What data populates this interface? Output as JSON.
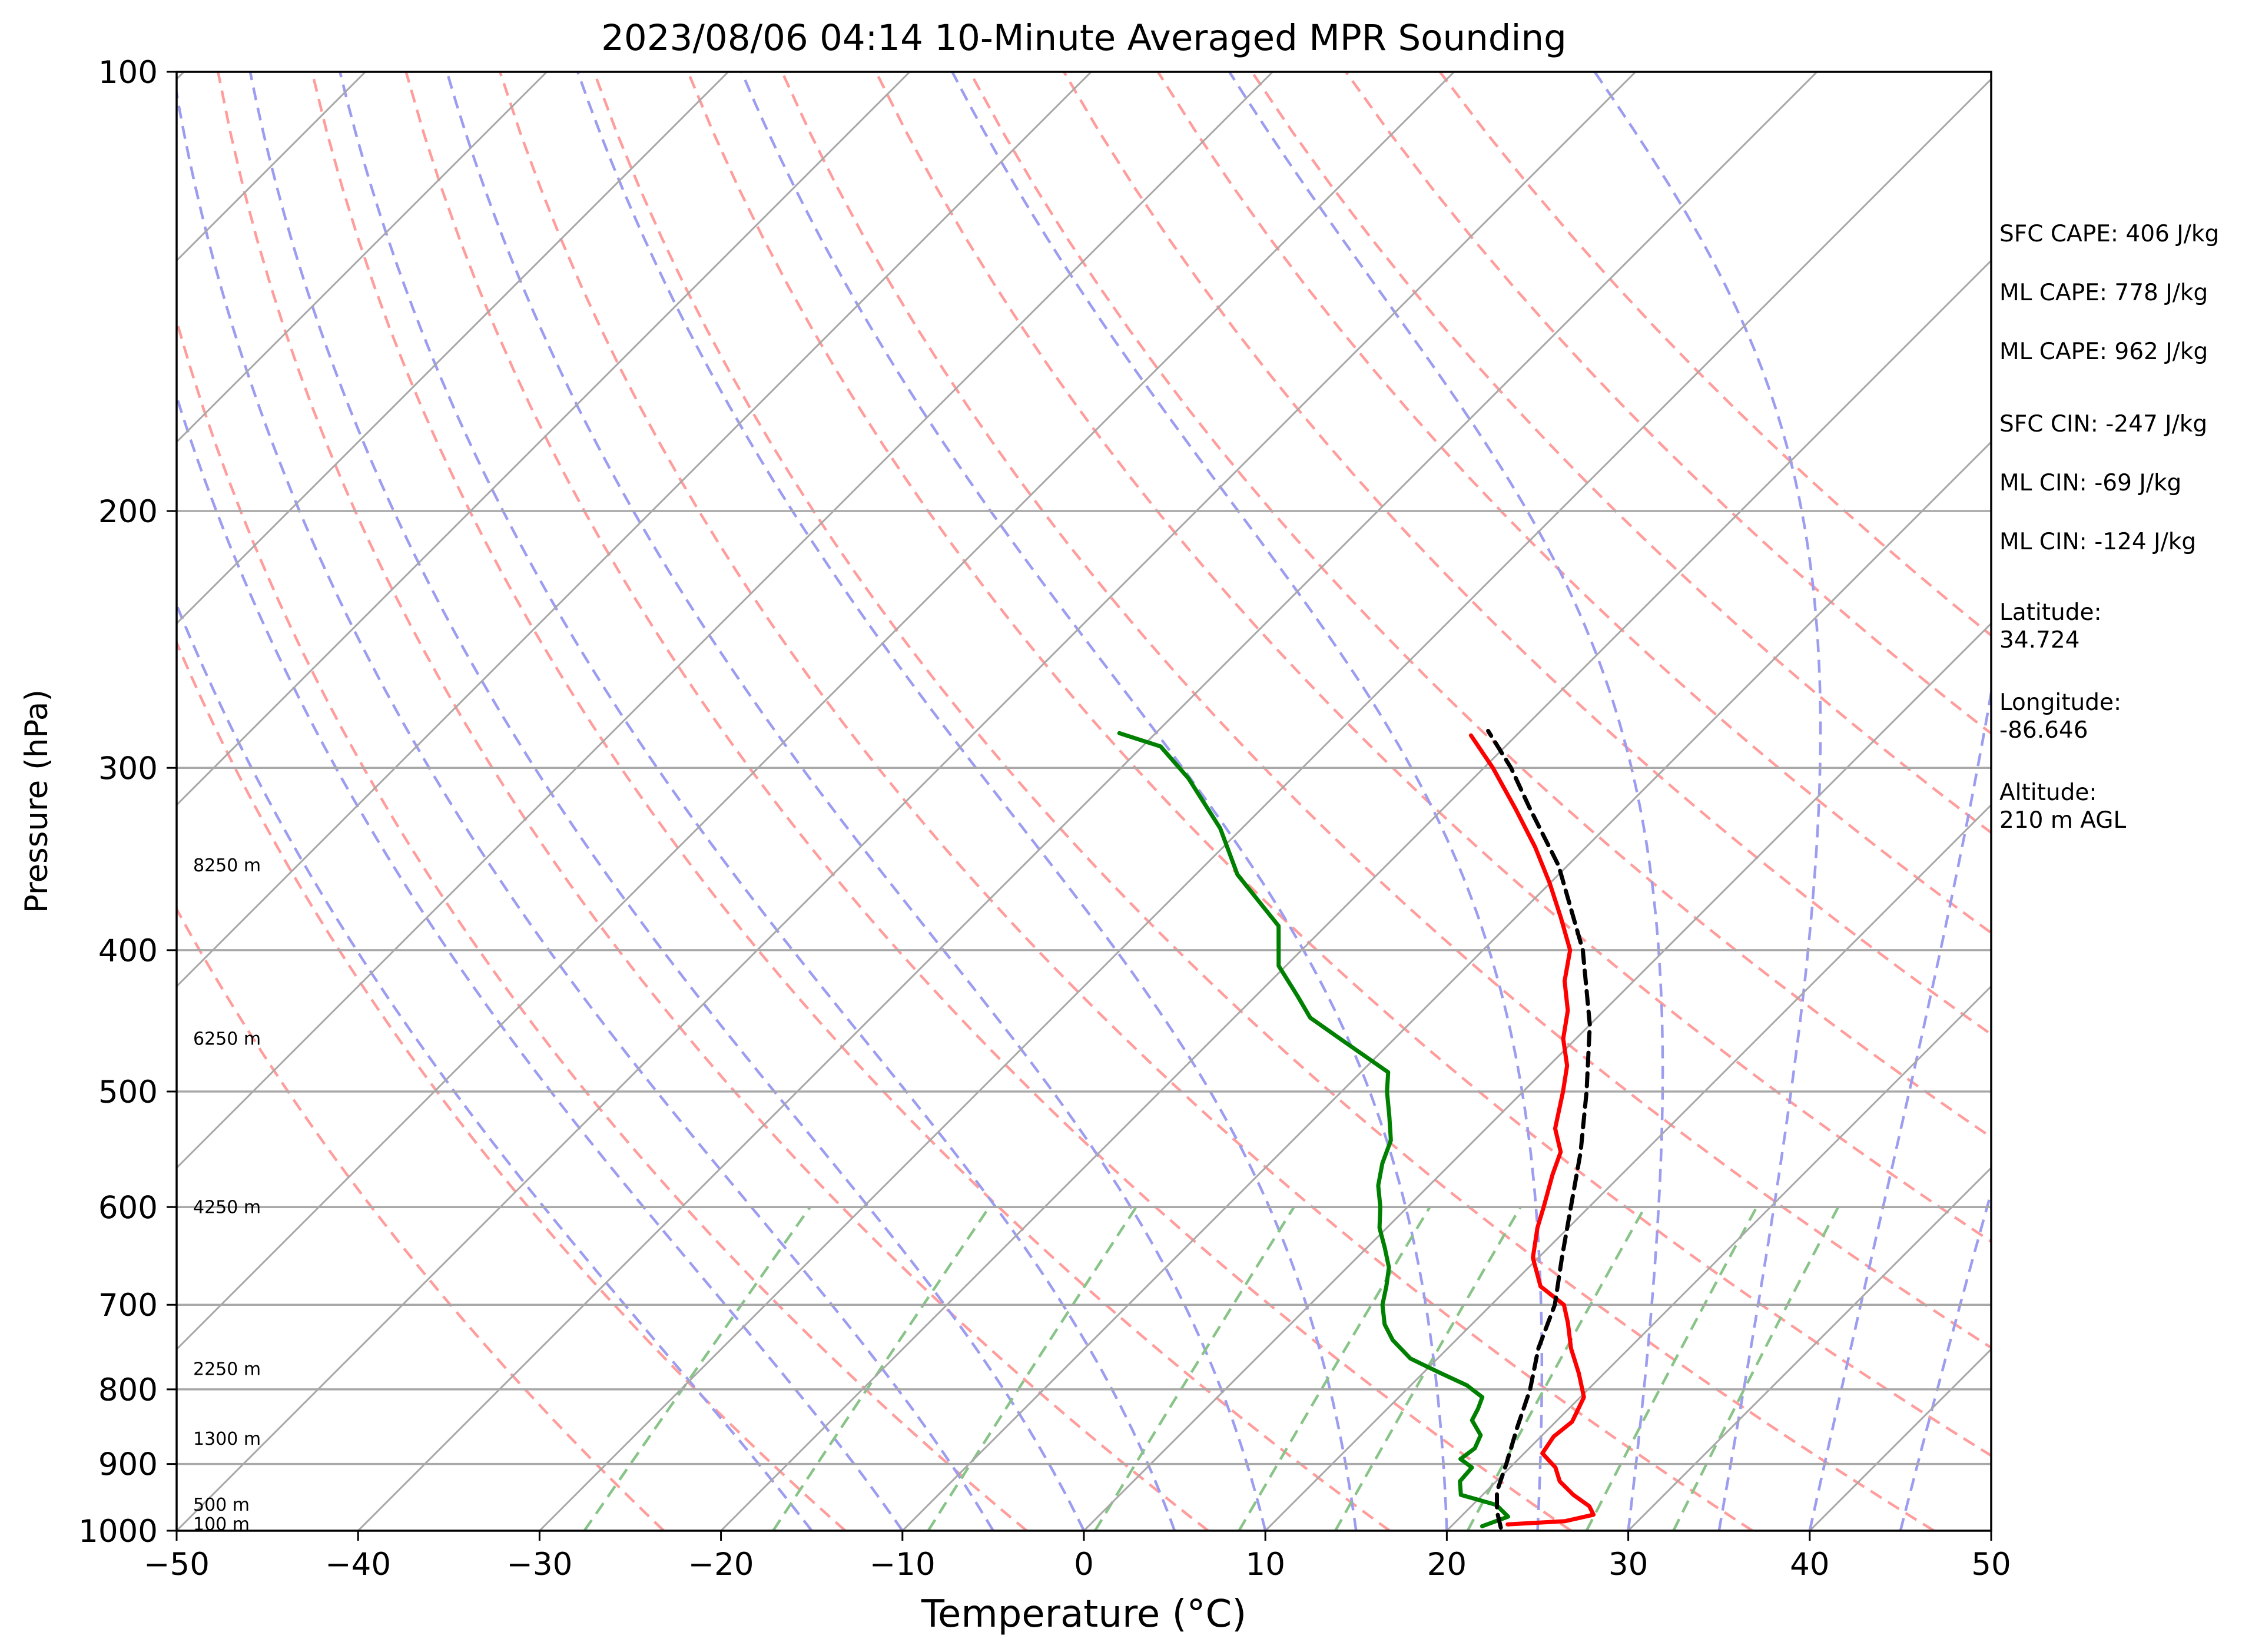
{
  "chart_data": {
    "type": "skew-t",
    "title": "2023/08/06 04:14 10-Minute Averaged MPR Sounding",
    "xlabel": "Temperature (°C)",
    "ylabel": "Pressure (hPa)",
    "xlim": [
      -50,
      50
    ],
    "ylim": [
      1000,
      100
    ],
    "y_scale": "log",
    "x_ticks": [
      -50,
      -40,
      -30,
      -20,
      -10,
      0,
      10,
      20,
      30,
      40,
      50
    ],
    "x_tick_labels": [
      "−50",
      "−40",
      "−30",
      "−20",
      "−10",
      "0",
      "10",
      "20",
      "30",
      "40",
      "50"
    ],
    "y_ticks": [
      1000,
      900,
      800,
      700,
      600,
      500,
      400,
      300,
      200,
      100
    ],
    "y_tick_labels": [
      "1000",
      "900",
      "800",
      "700",
      "600",
      "500",
      "400",
      "300",
      "200",
      "100"
    ],
    "grid": true,
    "background_lines": {
      "isotherms_c": [
        -150,
        -140,
        -130,
        -120,
        -110,
        -100,
        -90,
        -80,
        -70,
        -60,
        -50,
        -40,
        -30,
        -20,
        -10,
        0,
        10,
        20,
        30,
        40,
        50
      ],
      "dry_adiabats_theta_k": [
        250,
        260,
        270,
        280,
        290,
        300,
        310,
        320,
        330,
        340,
        350,
        360,
        370,
        380,
        390,
        400,
        410
      ],
      "moist_adiabats_start_c_at_1000": [
        -15,
        -10,
        -5,
        0,
        5,
        10,
        15,
        20,
        25,
        30,
        35,
        40,
        45
      ],
      "mixing_ratios_gkg": [
        0.4,
        1,
        2,
        4,
        7,
        10,
        16,
        24,
        32
      ],
      "dry_adiabat_color": "#ff9c9c",
      "moist_adiabat_color": "#9c9cf0",
      "mixing_ratio_color": "#88c488",
      "isotherm_color": "#a8a8a8"
    },
    "series": [
      {
        "key": "temperature",
        "color": "#ff0000",
        "points": [
          {
            "p": 990,
            "t": 23.0
          },
          {
            "p": 985,
            "t": 26.0
          },
          {
            "p": 975,
            "t": 27.2
          },
          {
            "p": 962,
            "t": 26.5
          },
          {
            "p": 945,
            "t": 25.0
          },
          {
            "p": 925,
            "t": 23.5
          },
          {
            "p": 905,
            "t": 22.5
          },
          {
            "p": 885,
            "t": 21.0
          },
          {
            "p": 862,
            "t": 20.7
          },
          {
            "p": 842,
            "t": 20.9
          },
          {
            "p": 810,
            "t": 20.2
          },
          {
            "p": 780,
            "t": 18.6
          },
          {
            "p": 750,
            "t": 16.8
          },
          {
            "p": 720,
            "t": 15.2
          },
          {
            "p": 700,
            "t": 14.0
          },
          {
            "p": 680,
            "t": 11.7
          },
          {
            "p": 650,
            "t": 9.7
          },
          {
            "p": 620,
            "t": 8.3
          },
          {
            "p": 600,
            "t": 7.5
          },
          {
            "p": 570,
            "t": 6.2
          },
          {
            "p": 550,
            "t": 5.4
          },
          {
            "p": 530,
            "t": 3.8
          },
          {
            "p": 500,
            "t": 2.2
          },
          {
            "p": 480,
            "t": 1.0
          },
          {
            "p": 460,
            "t": -0.7
          },
          {
            "p": 440,
            "t": -2.0
          },
          {
            "p": 420,
            "t": -3.8
          },
          {
            "p": 400,
            "t": -5.2
          },
          {
            "p": 380,
            "t": -7.5
          },
          {
            "p": 360,
            "t": -10.0
          },
          {
            "p": 340,
            "t": -12.8
          },
          {
            "p": 320,
            "t": -16.0
          },
          {
            "p": 300,
            "t": -19.5
          },
          {
            "p": 285,
            "t": -22.5
          }
        ]
      },
      {
        "key": "dewpoint",
        "color": "#008000",
        "points": [
          {
            "p": 993,
            "t": 21.7
          },
          {
            "p": 978,
            "t": 22.6
          },
          {
            "p": 960,
            "t": 21.3
          },
          {
            "p": 945,
            "t": 18.8
          },
          {
            "p": 925,
            "t": 18.0
          },
          {
            "p": 905,
            "t": 17.9
          },
          {
            "p": 893,
            "t": 16.8
          },
          {
            "p": 878,
            "t": 17.0
          },
          {
            "p": 860,
            "t": 16.6
          },
          {
            "p": 840,
            "t": 15.3
          },
          {
            "p": 825,
            "t": 15.0
          },
          {
            "p": 810,
            "t": 14.6
          },
          {
            "p": 795,
            "t": 13.1
          },
          {
            "p": 780,
            "t": 11.0
          },
          {
            "p": 762,
            "t": 8.5
          },
          {
            "p": 740,
            "t": 6.5
          },
          {
            "p": 722,
            "t": 5.2
          },
          {
            "p": 700,
            "t": 4.0
          },
          {
            "p": 680,
            "t": 3.2
          },
          {
            "p": 660,
            "t": 2.3
          },
          {
            "p": 640,
            "t": 1.0
          },
          {
            "p": 620,
            "t": -0.4
          },
          {
            "p": 600,
            "t": -1.5
          },
          {
            "p": 580,
            "t": -2.8
          },
          {
            "p": 560,
            "t": -3.8
          },
          {
            "p": 540,
            "t": -4.6
          },
          {
            "p": 520,
            "t": -6.0
          },
          {
            "p": 500,
            "t": -7.5
          },
          {
            "p": 485,
            "t": -8.5
          },
          {
            "p": 460,
            "t": -13.0
          },
          {
            "p": 445,
            "t": -15.8
          },
          {
            "p": 430,
            "t": -17.7
          },
          {
            "p": 410,
            "t": -20.4
          },
          {
            "p": 385,
            "t": -22.6
          },
          {
            "p": 355,
            "t": -27.7
          },
          {
            "p": 330,
            "t": -31.2
          },
          {
            "p": 305,
            "t": -35.7
          },
          {
            "p": 290,
            "t": -39.0
          },
          {
            "p": 284,
            "t": -42.0
          }
        ]
      },
      {
        "key": "parcel",
        "color": "#000000",
        "dashed": true,
        "points": [
          {
            "p": 995,
            "t": 22.8
          },
          {
            "p": 970,
            "t": 21.7
          },
          {
            "p": 940,
            "t": 20.6
          },
          {
            "p": 900,
            "t": 19.6
          },
          {
            "p": 850,
            "t": 18.2
          },
          {
            "p": 800,
            "t": 16.8
          },
          {
            "p": 750,
            "t": 15.0
          },
          {
            "p": 700,
            "t": 13.5
          },
          {
            "p": 650,
            "t": 11.3
          },
          {
            "p": 600,
            "t": 9.0
          },
          {
            "p": 550,
            "t": 6.5
          },
          {
            "p": 500,
            "t": 3.5
          },
          {
            "p": 450,
            "t": 0.0
          },
          {
            "p": 400,
            "t": -4.5
          },
          {
            "p": 350,
            "t": -10.5
          },
          {
            "p": 320,
            "t": -15.2
          },
          {
            "p": 300,
            "t": -18.5
          },
          {
            "p": 283,
            "t": -21.8
          }
        ]
      }
    ],
    "height_labels": [
      {
        "p": 990,
        "label": "100 m"
      },
      {
        "p": 960,
        "label": "500 m"
      },
      {
        "p": 865,
        "label": "1300 m"
      },
      {
        "p": 775,
        "label": "2250 m"
      },
      {
        "p": 600,
        "label": "4250 m"
      },
      {
        "p": 460,
        "label": "6250 m"
      },
      {
        "p": 350,
        "label": "8250 m"
      }
    ],
    "info_lines": [
      "SFC CAPE: 406 J/kg",
      "ML CAPE: 778 J/kg",
      "ML CAPE: 962 J/kg",
      "SFC CIN: -247 J/kg",
      "ML CIN: -69 J/kg",
      "ML CIN: -124 J/kg",
      "Latitude:",
      "34.724",
      "Longitude:",
      "-86.646",
      "Altitude:",
      "210 m AGL"
    ]
  }
}
